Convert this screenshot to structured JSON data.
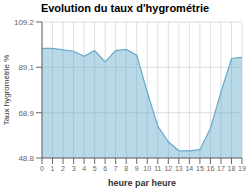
{
  "chart_data": {
    "type": "area",
    "title": "Evolution du taux d'hygrométrie",
    "xlabel": "heure par heure",
    "ylabel": "Taux hygrométrie %",
    "x": [
      0,
      1,
      2,
      3,
      4,
      5,
      6,
      7,
      8,
      9,
      10,
      11,
      12,
      13,
      14,
      15,
      16,
      17,
      18,
      19
    ],
    "values": [
      97.5,
      97.5,
      96.8,
      96.2,
      94.0,
      96.5,
      91.5,
      96.5,
      97.0,
      94.5,
      78.0,
      63.0,
      56.0,
      52.0,
      52.0,
      52.5,
      62.0,
      78.0,
      93.0,
      93.5
    ],
    "color": "#66aacc",
    "xlim": [
      0,
      19
    ],
    "xticks": [
      0,
      1,
      2,
      3,
      4,
      5,
      6,
      7,
      8,
      9,
      10,
      11,
      12,
      13,
      14,
      15,
      16,
      17,
      18,
      19
    ],
    "ylim": [
      48.8,
      109.2
    ],
    "yticks": [
      48.8,
      68.9,
      89.1,
      109.2
    ],
    "grid": true
  }
}
